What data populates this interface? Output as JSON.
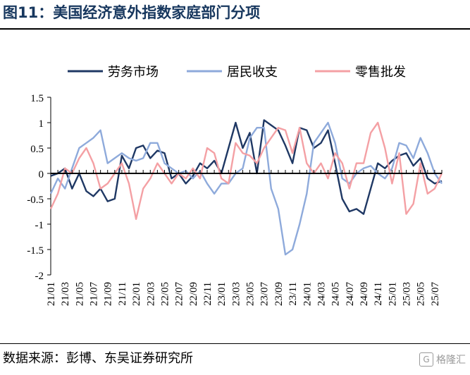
{
  "figure": {
    "title": "图11：美国经济意外指数家庭部门分项",
    "source": "数据来源：彭博、东吴证券研究所",
    "watermark": "格隆汇",
    "watermark_icon": "g-logo-icon"
  },
  "chart_data": {
    "type": "line",
    "title": "",
    "xlabel": "",
    "ylabel": "",
    "ylim": [
      -2,
      1.5
    ],
    "yticks": [
      1.5,
      1,
      0.5,
      0,
      -0.5,
      -1,
      -1.5,
      -2
    ],
    "ytick_labels": [
      "1.5",
      "1",
      "0.5",
      "0",
      "-0.5",
      "-1",
      "-1.5",
      "-2"
    ],
    "xticks": [
      "21/01",
      "21/03",
      "21/05",
      "21/07",
      "21/09",
      "21/11",
      "22/01",
      "22/03",
      "22/05",
      "22/07",
      "22/09",
      "22/11",
      "23/01",
      "23/03",
      "23/05",
      "23/07",
      "23/09",
      "23/11",
      "24/01",
      "24/03",
      "24/05",
      "24/07",
      "24/09",
      "24/11",
      "25/01",
      "25/03",
      "25/05",
      "25/07"
    ],
    "x_months": [
      "21/01",
      "21/02",
      "21/03",
      "21/04",
      "21/05",
      "21/06",
      "21/07",
      "21/08",
      "21/09",
      "21/10",
      "21/11",
      "21/12",
      "22/01",
      "22/02",
      "22/03",
      "22/04",
      "22/05",
      "22/06",
      "22/07",
      "22/08",
      "22/09",
      "22/10",
      "22/11",
      "22/12",
      "23/01",
      "23/02",
      "23/03",
      "23/04",
      "23/05",
      "23/06",
      "23/07",
      "23/08",
      "23/09",
      "23/10",
      "23/11",
      "23/12",
      "24/01",
      "24/02",
      "24/03",
      "24/04",
      "24/05",
      "24/06",
      "24/07",
      "24/08",
      "24/09",
      "24/10",
      "24/11",
      "24/12",
      "25/01",
      "25/02",
      "25/03",
      "25/04",
      "25/05",
      "25/06",
      "25/07",
      "25/08"
    ],
    "grid": false,
    "legend_position": "top",
    "series": [
      {
        "name": "劳务市场",
        "color": "#1f3864",
        "values": [
          -0.05,
          0.0,
          0.1,
          -0.3,
          0.0,
          -0.35,
          -0.45,
          -0.3,
          -0.55,
          -0.5,
          0.35,
          0.1,
          0.5,
          0.55,
          0.3,
          0.45,
          0.4,
          -0.1,
          0.0,
          -0.2,
          -0.05,
          0.2,
          0.1,
          0.25,
          0.0,
          0.5,
          1.0,
          0.5,
          0.8,
          0.0,
          1.05,
          0.95,
          0.85,
          0.55,
          0.2,
          0.9,
          0.85,
          0.5,
          0.6,
          0.85,
          0.2,
          -0.5,
          -0.75,
          -0.7,
          -0.8,
          -0.3,
          0.2,
          0.1,
          0.25,
          0.35,
          0.4,
          0.15,
          0.3,
          -0.1,
          -0.2,
          -0.15
        ]
      },
      {
        "name": "居民收支",
        "color": "#8eaadb",
        "values": [
          -0.4,
          -0.1,
          -0.3,
          0.1,
          0.5,
          0.6,
          0.7,
          0.85,
          0.2,
          0.3,
          0.4,
          0.3,
          0.25,
          0.3,
          0.6,
          0.6,
          0.2,
          0.1,
          0.0,
          0.05,
          -0.1,
          0.05,
          -0.2,
          -0.4,
          -0.2,
          -0.2,
          0.0,
          0.1,
          0.7,
          0.9,
          0.9,
          -0.3,
          -0.7,
          -1.6,
          -1.5,
          -1.0,
          -0.4,
          0.6,
          0.8,
          1.0,
          0.6,
          -0.1,
          -0.2,
          0.0,
          0.1,
          0.15,
          0.0,
          -0.1,
          0.1,
          0.6,
          0.55,
          0.3,
          0.7,
          0.4,
          0.0,
          -0.2
        ]
      },
      {
        "name": "零售批发",
        "color": "#f4a0a4",
        "values": [
          -0.7,
          -0.4,
          0.1,
          0.0,
          0.3,
          0.5,
          0.2,
          -0.3,
          -0.2,
          0.0,
          0.2,
          -0.2,
          -0.9,
          -0.3,
          -0.1,
          0.2,
          0.0,
          -0.2,
          0.0,
          -0.1,
          0.1,
          -0.1,
          0.5,
          0.4,
          -0.1,
          -0.2,
          0.6,
          0.4,
          0.35,
          0.2,
          0.5,
          0.7,
          0.9,
          0.85,
          0.4,
          0.9,
          0.2,
          0.0,
          0.2,
          -0.1,
          0.4,
          0.2,
          -0.3,
          0.2,
          0.2,
          0.8,
          1.0,
          0.5,
          -0.2,
          0.4,
          -0.8,
          -0.6,
          0.2,
          -0.4,
          -0.3,
          0.0
        ]
      }
    ]
  }
}
